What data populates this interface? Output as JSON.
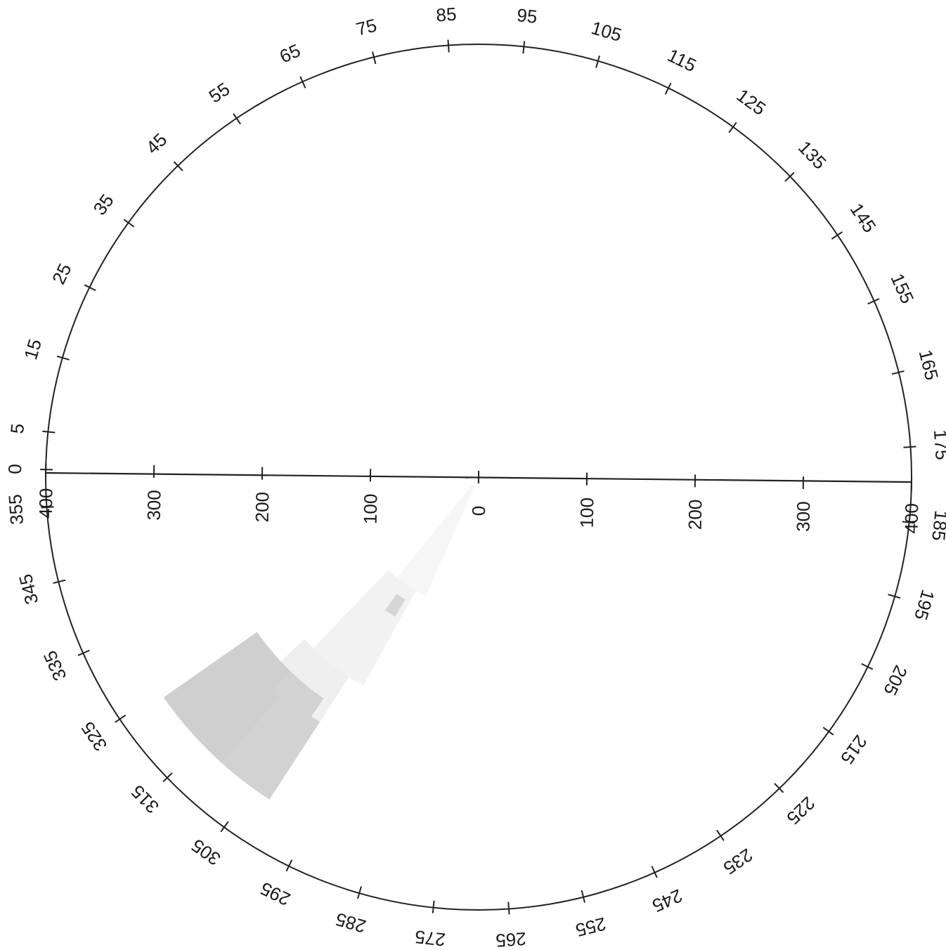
{
  "chart_data": {
    "type": "polar-heatmap",
    "angular_axis": {
      "unit": "degrees",
      "ticks": [
        0,
        5,
        15,
        25,
        35,
        45,
        55,
        65,
        75,
        85,
        95,
        105,
        115,
        125,
        135,
        145,
        155,
        165,
        175,
        185,
        195,
        205,
        215,
        225,
        235,
        245,
        255,
        265,
        275,
        285,
        295,
        305,
        315,
        325,
        335,
        345,
        355
      ],
      "tick_labels": [
        "0",
        "5",
        "15",
        "25",
        "35",
        "45",
        "55",
        "65",
        "75",
        "85",
        "95",
        "105",
        "115",
        "125",
        "135",
        "145",
        "155",
        "165",
        "175",
        "185",
        "195",
        "205",
        "215",
        "225",
        "235",
        "245",
        "255",
        "265",
        "275",
        "285",
        "295",
        "305",
        "315",
        "325",
        "335",
        "345",
        "355"
      ]
    },
    "radial_axis": {
      "range": [
        0,
        400
      ],
      "ticks_left": [
        {
          "value": 400,
          "label": "400"
        },
        {
          "value": 300,
          "label": "300"
        },
        {
          "value": 200,
          "label": "200"
        },
        {
          "value": 100,
          "label": "100"
        },
        {
          "value": 0,
          "label": "0"
        }
      ],
      "ticks_right": [
        {
          "value": 100,
          "label": "100"
        },
        {
          "value": 200,
          "label": "200"
        },
        {
          "value": 300,
          "label": "300"
        },
        {
          "value": 400,
          "label": "400"
        }
      ]
    },
    "cells": [
      {
        "theta_start": 293,
        "theta_end": 308,
        "r_start": 10,
        "r_end": 120,
        "color": "#f6f6f6"
      },
      {
        "theta_start": 298,
        "theta_end": 313,
        "r_start": 120,
        "r_end": 220,
        "color": "#f2f2f2"
      },
      {
        "theta_start": 302,
        "theta_end": 316,
        "r_start": 220,
        "r_end": 285,
        "color": "#efefef"
      },
      {
        "theta_start": 300,
        "theta_end": 304,
        "r_start": 132,
        "r_end": 150,
        "color": "#d6d6d6"
      },
      {
        "theta_start": 311,
        "theta_end": 324,
        "r_start": 250,
        "r_end": 355,
        "color": "#cfcfcf"
      },
      {
        "theta_start": 302,
        "theta_end": 311,
        "r_start": 270,
        "r_end": 355,
        "color": "#d2d2d2"
      },
      {
        "theta_start": 304,
        "theta_end": 313,
        "r_start": 250,
        "r_end": 275,
        "color": "#d2d2d2"
      },
      {
        "theta_start": 352,
        "theta_end": 359,
        "r_start": 0,
        "r_end": 12,
        "color": "#bdbdbd"
      }
    ],
    "grid": false
  }
}
